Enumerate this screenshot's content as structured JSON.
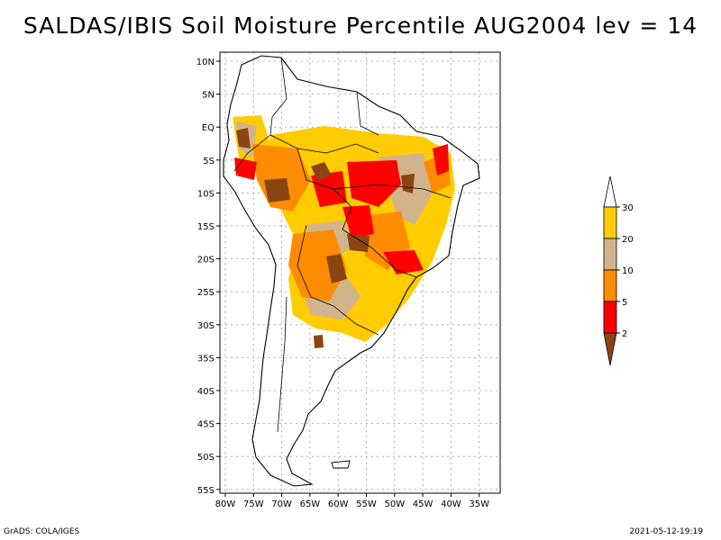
{
  "title": "SALDAS/IBIS Soil Moisture Percentile AUG2004 lev = 14",
  "y_ticks": [
    "10N",
    "5N",
    "EQ",
    "5S",
    "10S",
    "15S",
    "20S",
    "25S",
    "30S",
    "35S",
    "40S",
    "45S",
    "50S",
    "55S"
  ],
  "x_ticks": [
    "80W",
    "75W",
    "70W",
    "65W",
    "60W",
    "55W",
    "50W",
    "45W",
    "40W",
    "35W"
  ],
  "colorbar": {
    "labels": [
      "30",
      "20",
      "10",
      "5",
      "2"
    ],
    "colors": [
      "#ffffff",
      "#ffcc00",
      "#d2b48c",
      "#ff8c00",
      "#ff0000",
      "#8b4513"
    ]
  },
  "map_colors": {
    "brown": "#8b4513",
    "red": "#ff0000",
    "orange": "#ff8c00",
    "tan": "#d2b48c",
    "yellow": "#ffcc00",
    "coast": "#000000",
    "grid": "#9a9a9a"
  },
  "footer": {
    "left": "GrADS: COLA/IGES",
    "right": "2021-05-12-19:19"
  }
}
